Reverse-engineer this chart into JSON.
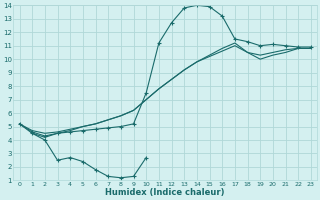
{
  "xlabel": "Humidex (Indice chaleur)",
  "bg_color": "#d4f0f0",
  "grid_color": "#b0d8d8",
  "line_color": "#1a6b6b",
  "xlim": [
    -0.5,
    23.5
  ],
  "ylim": [
    1,
    14
  ],
  "xticks": [
    0,
    1,
    2,
    3,
    4,
    5,
    6,
    7,
    8,
    9,
    10,
    11,
    12,
    13,
    14,
    15,
    16,
    17,
    18,
    19,
    20,
    21,
    22,
    23
  ],
  "yticks": [
    1,
    2,
    3,
    4,
    5,
    6,
    7,
    8,
    9,
    10,
    11,
    12,
    13,
    14
  ],
  "curve1_x": [
    0,
    1,
    2,
    3,
    4,
    5,
    6,
    7,
    8,
    9,
    10,
    11,
    12,
    13,
    14,
    15,
    16,
    17,
    18,
    19,
    20,
    21,
    22,
    23
  ],
  "curve1_y": [
    5.2,
    4.6,
    4.3,
    4.5,
    4.6,
    4.7,
    4.8,
    4.9,
    5.0,
    5.2,
    7.5,
    11.2,
    12.7,
    13.8,
    14.0,
    13.9,
    13.2,
    11.5,
    11.3,
    11.0,
    11.1,
    11.0,
    10.9,
    10.9
  ],
  "curve2_x": [
    0,
    1,
    2,
    3,
    4,
    5,
    6,
    7,
    8,
    9,
    10,
    11,
    12,
    13,
    14,
    15,
    16,
    17,
    18,
    19,
    20,
    21,
    22,
    23
  ],
  "curve2_y": [
    5.2,
    4.7,
    4.5,
    4.6,
    4.8,
    5.0,
    5.2,
    5.5,
    5.8,
    6.2,
    7.0,
    7.8,
    8.5,
    9.2,
    9.8,
    10.3,
    10.8,
    11.2,
    10.5,
    10.3,
    10.5,
    10.7,
    10.8,
    10.8
  ],
  "curve3_x": [
    0,
    1,
    2,
    3,
    4,
    5,
    6,
    7,
    8,
    9,
    10,
    11,
    12,
    13,
    14,
    15,
    16,
    17,
    18,
    19,
    20,
    21,
    22,
    23
  ],
  "curve3_y": [
    5.2,
    4.5,
    4.2,
    4.5,
    4.7,
    5.0,
    5.2,
    5.5,
    5.8,
    6.2,
    7.0,
    7.8,
    8.5,
    9.2,
    9.8,
    10.2,
    10.6,
    11.0,
    10.5,
    10.0,
    10.3,
    10.5,
    10.8,
    10.8
  ],
  "curve_low_x": [
    1,
    2,
    3,
    4,
    5,
    6,
    7,
    8,
    9,
    10
  ],
  "curve_low_y": [
    4.5,
    4.0,
    2.5,
    2.7,
    2.4,
    1.8,
    1.3,
    1.2,
    1.3,
    2.7
  ]
}
